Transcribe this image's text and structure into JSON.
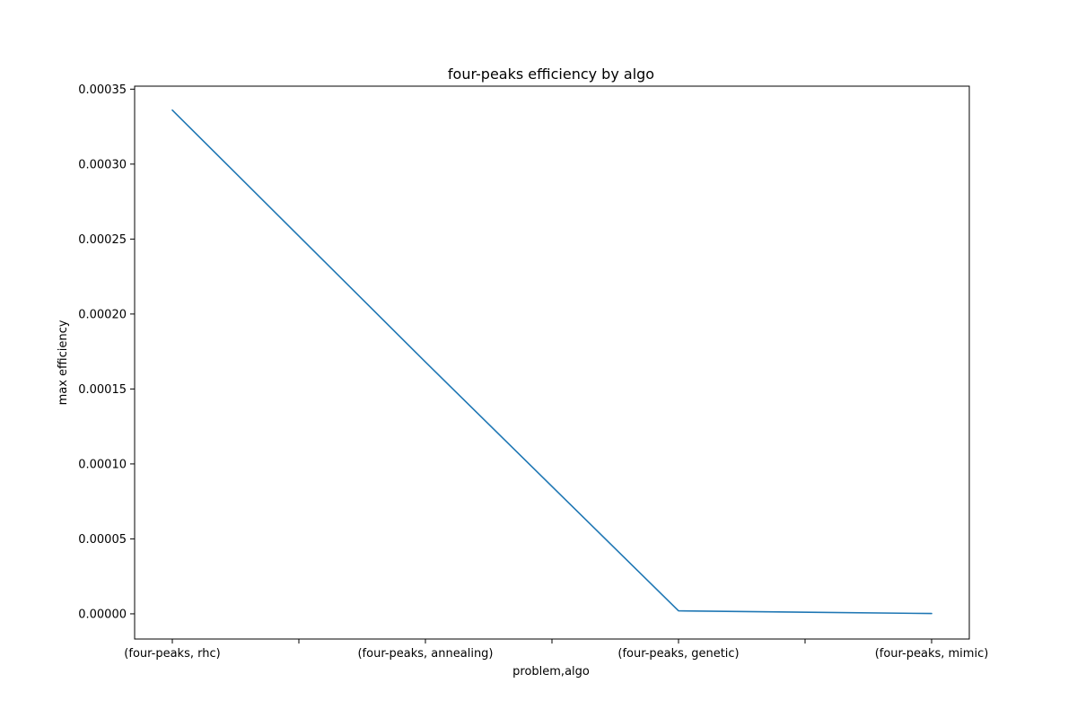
{
  "chart_data": {
    "type": "line",
    "title": "four-peaks efficiency by algo",
    "xlabel": "problem,algo",
    "ylabel": "max efficiency",
    "categories": [
      "(four-peaks, rhc)",
      "(four-peaks, annealing)",
      "(four-peaks, genetic)",
      "(four-peaks, mimic)"
    ],
    "x_tick_labels": [
      "(four-peaks, rhc)",
      "",
      "(four-peaks, annealing)",
      "",
      "(four-peaks, genetic)",
      "",
      "(four-peaks, mimic)"
    ],
    "series": [
      {
        "values": [
          0.000336,
          0.000168,
          2e-06,
          2e-07
        ],
        "color": "#1f77b4"
      }
    ],
    "ylim": [
      -1.68e-05,
      0.000352
    ],
    "y_ticks": [
      0,
      5e-05,
      0.0001,
      0.00015,
      0.0002,
      0.00025,
      0.0003,
      0.00035
    ],
    "y_tick_labels": [
      "0.00000",
      "0.00005",
      "0.00010",
      "0.00015",
      "0.00020",
      "0.00025",
      "0.00030",
      "0.00035"
    ],
    "grid": false,
    "legend": "none"
  }
}
